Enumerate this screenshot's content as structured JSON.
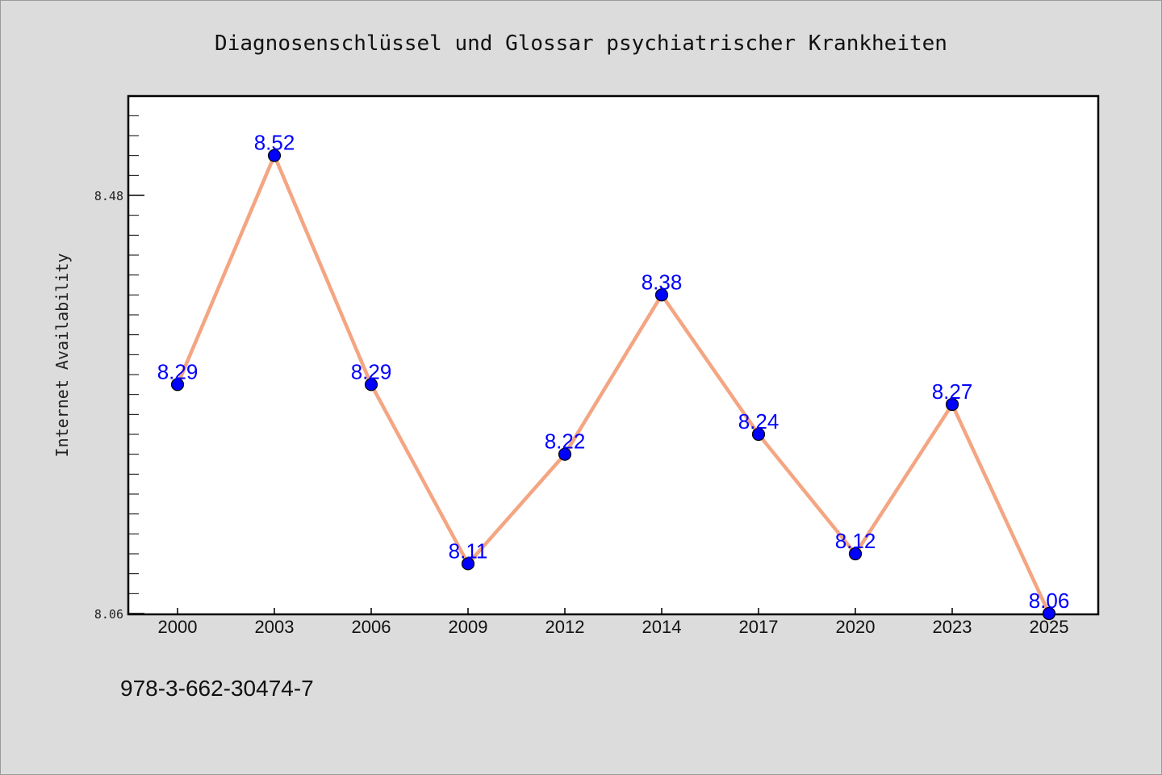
{
  "chart_data": {
    "type": "line",
    "title": "Diagnosenschlüssel und Glossar psychiatrischer Krankheiten",
    "xlabel": "",
    "ylabel": "Internet Availability",
    "categories": [
      "2000",
      "2003",
      "2006",
      "2009",
      "2012",
      "2014",
      "2017",
      "2020",
      "2023",
      "2025"
    ],
    "series": [
      {
        "values": [
          8.29,
          8.52,
          8.29,
          8.11,
          8.22,
          8.38,
          8.24,
          8.12,
          8.27,
          8.06
        ]
      }
    ],
    "ylim": [
      8.06,
      8.58
    ],
    "yticks": [
      8.06,
      8.48
    ],
    "ytick_labels": [
      "8.06",
      "8.48"
    ],
    "data_labels": [
      "8.29",
      "8.52",
      "8.29",
      "8.11",
      "8.22",
      "8.38",
      "8.24",
      "8.12",
      "8.27",
      "8.06"
    ],
    "grid": false,
    "legend": "none",
    "colors": {
      "line": "#f4a582",
      "marker": "#0000ff",
      "label": "#0000ff"
    }
  },
  "footer": {
    "isbn": "978-3-662-30474-7"
  }
}
